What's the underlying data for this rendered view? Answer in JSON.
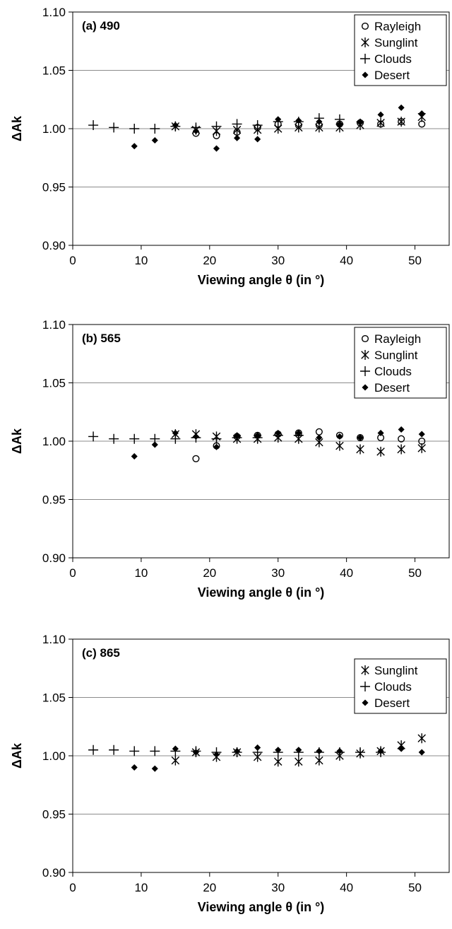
{
  "chart_data": [
    {
      "type": "scatter",
      "panel_label": "(a)",
      "panel_value": "490",
      "xlabel": "Viewing angle θ (in °)",
      "ylabel": "ΔAk",
      "xlim": [
        0,
        55
      ],
      "ylim": [
        0.9,
        1.1
      ],
      "xticks": [
        "0",
        "10",
        "20",
        "30",
        "40",
        "50"
      ],
      "yticks": [
        "0.90",
        "0.95",
        "1.00",
        "1.05",
        "1.10"
      ],
      "grid": "horizontal",
      "legend_position": "top-right",
      "series": [
        {
          "name": "Rayleigh",
          "marker": "circle",
          "x": [
            18,
            21,
            24,
            27,
            30,
            33,
            36,
            39,
            42,
            45,
            48,
            51
          ],
          "y": [
            0.996,
            0.994,
            0.997,
            1.001,
            1.004,
            1.003,
            1.003,
            1.004,
            1.005,
            1.004,
            1.006,
            1.004
          ]
        },
        {
          "name": "Sunglint",
          "marker": "asterisk",
          "x": [
            15,
            18,
            21,
            24,
            27,
            30,
            33,
            36,
            39,
            42,
            45,
            48,
            51
          ],
          "y": [
            1.002,
            0.999,
            0.998,
            0.999,
            0.999,
            1.0,
            1.001,
            1.001,
            1.001,
            1.003,
            1.005,
            1.006,
            1.01
          ]
        },
        {
          "name": "Clouds",
          "marker": "plus",
          "x": [
            3,
            6,
            9,
            12,
            15,
            18,
            21,
            24,
            27,
            30,
            33,
            36,
            39
          ],
          "y": [
            1.003,
            1.001,
            1.0,
            1.0,
            1.002,
            1.001,
            1.002,
            1.004,
            1.003,
            1.006,
            1.006,
            1.009,
            1.008
          ]
        },
        {
          "name": "Desert",
          "marker": "diamond",
          "x": [
            9,
            12,
            15,
            18,
            21,
            24,
            27,
            30,
            33,
            36,
            39,
            42,
            45,
            48,
            51
          ],
          "y": [
            0.985,
            0.99,
            1.003,
            0.998,
            0.983,
            0.992,
            0.991,
            1.008,
            1.007,
            1.006,
            1.004,
            1.006,
            1.012,
            1.018,
            1.013
          ]
        }
      ]
    },
    {
      "type": "scatter",
      "panel_label": "(b)",
      "panel_value": "565",
      "xlabel": "Viewing angle θ (in °)",
      "ylabel": "ΔAk",
      "xlim": [
        0,
        55
      ],
      "ylim": [
        0.9,
        1.1
      ],
      "xticks": [
        "0",
        "10",
        "20",
        "30",
        "40",
        "50"
      ],
      "yticks": [
        "0.90",
        "0.95",
        "1.00",
        "1.05",
        "1.10"
      ],
      "grid": "horizontal",
      "legend_position": "top-right",
      "series": [
        {
          "name": "Rayleigh",
          "marker": "circle",
          "x": [
            18,
            21,
            24,
            27,
            30,
            33,
            36,
            39,
            42,
            45,
            48,
            51
          ],
          "y": [
            0.985,
            0.996,
            1.004,
            1.005,
            1.006,
            1.007,
            1.008,
            1.005,
            1.003,
            1.003,
            1.002,
            1.0
          ]
        },
        {
          "name": "Sunglint",
          "marker": "asterisk",
          "x": [
            15,
            18,
            21,
            24,
            27,
            30,
            33,
            36,
            39,
            42,
            45,
            48,
            51
          ],
          "y": [
            1.006,
            1.006,
            1.004,
            1.002,
            1.002,
            1.003,
            1.002,
            0.999,
            0.996,
            0.993,
            0.991,
            0.993,
            0.994
          ]
        },
        {
          "name": "Clouds",
          "marker": "plus",
          "x": [
            3,
            6,
            9,
            12,
            15,
            18,
            21,
            24,
            27,
            30,
            33
          ],
          "y": [
            1.004,
            1.002,
            1.002,
            1.002,
            1.002,
            1.003,
            1.002,
            1.003,
            1.003,
            1.005,
            1.005
          ]
        },
        {
          "name": "Desert",
          "marker": "diamond",
          "x": [
            9,
            12,
            15,
            18,
            21,
            24,
            27,
            30,
            33,
            36,
            39,
            42,
            45,
            48,
            51
          ],
          "y": [
            0.987,
            0.997,
            1.007,
            1.004,
            0.995,
            1.005,
            1.005,
            1.007,
            1.007,
            1.003,
            1.004,
            1.003,
            1.007,
            1.01,
            1.006
          ]
        }
      ]
    },
    {
      "type": "scatter",
      "panel_label": "(c)",
      "panel_value": "865",
      "xlabel": "Viewing angle θ (in °)",
      "ylabel": "ΔAk",
      "xlim": [
        0,
        55
      ],
      "ylim": [
        0.9,
        1.1
      ],
      "xticks": [
        "0",
        "10",
        "20",
        "30",
        "40",
        "50"
      ],
      "yticks": [
        "0.90",
        "0.95",
        "1.00",
        "1.05",
        "1.10"
      ],
      "grid": "horizontal",
      "legend_position": "top-right",
      "series": [
        {
          "name": "Sunglint",
          "marker": "asterisk",
          "x": [
            15,
            18,
            21,
            24,
            27,
            30,
            33,
            36,
            39,
            42,
            45,
            48,
            51
          ],
          "y": [
            0.996,
            1.003,
            0.999,
            1.003,
            0.999,
            0.995,
            0.995,
            0.996,
            1.0,
            1.002,
            1.004,
            1.009,
            1.015
          ]
        },
        {
          "name": "Clouds",
          "marker": "plus",
          "x": [
            3,
            6,
            9,
            12,
            15,
            18,
            21,
            24,
            27,
            30,
            33,
            36,
            39,
            42,
            45
          ],
          "y": [
            1.005,
            1.005,
            1.004,
            1.004,
            1.004,
            1.004,
            1.003,
            1.003,
            1.003,
            1.003,
            1.003,
            1.003,
            1.003,
            1.003,
            1.003
          ]
        },
        {
          "name": "Desert",
          "marker": "diamond",
          "x": [
            9,
            12,
            15,
            18,
            21,
            24,
            27,
            30,
            33,
            36,
            39,
            45,
            48,
            51
          ],
          "y": [
            0.99,
            0.989,
            1.006,
            1.003,
            1.001,
            1.004,
            1.007,
            1.005,
            1.005,
            1.004,
            1.004,
            1.004,
            1.006,
            1.003
          ]
        }
      ]
    }
  ]
}
